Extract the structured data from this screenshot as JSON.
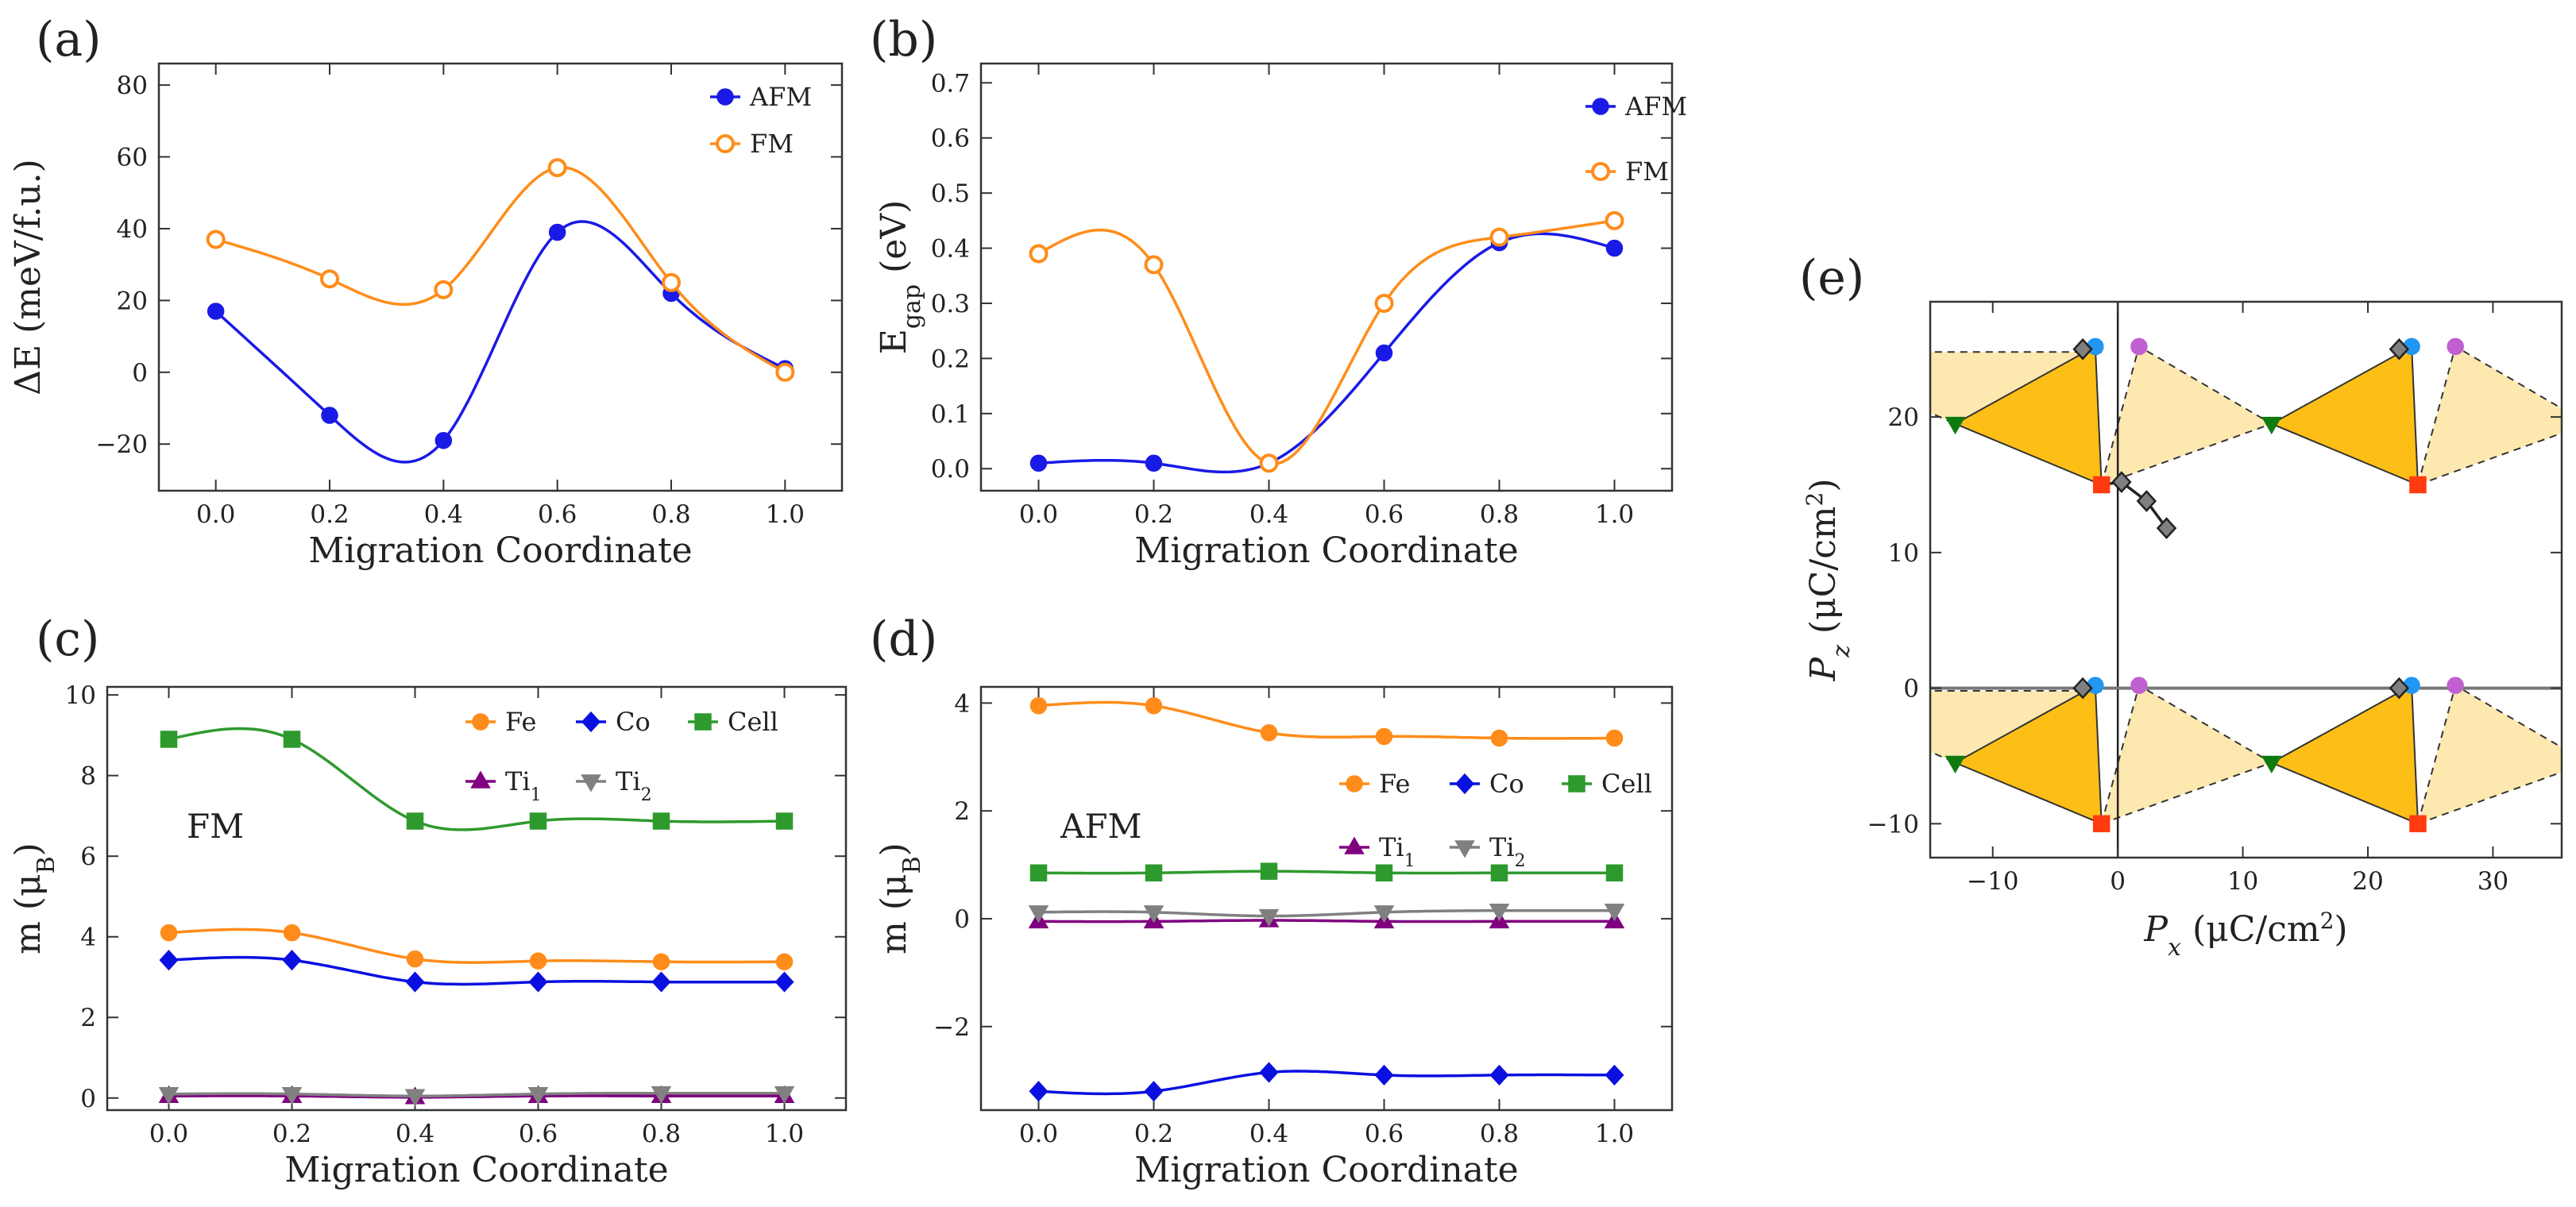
{
  "colors": {
    "afm": "#1a1ae6",
    "fm": "#ff8c1a",
    "fe": "#ff8c1a",
    "co": "#0a10e0",
    "cell": "#2e9a2e",
    "ti1": "#800080",
    "ti2": "#808080",
    "tri_dark": "#fdbf16",
    "tri_light": "#fde8b0",
    "green_marker": "#0f7a0f",
    "red_marker": "#ff3b0f",
    "blue_marker": "#2196f3",
    "purple_marker": "#c060d0",
    "gray_marker": "#808080"
  },
  "chart_data": [
    {
      "panel": "(a)",
      "type": "line",
      "xlabel": "Migration Coordinate",
      "ylabel": "ΔE (meV/f.u.)",
      "xlim": [
        -0.1,
        1.1
      ],
      "ylim": [
        -33,
        86
      ],
      "xticks": [
        0.0,
        0.2,
        0.4,
        0.6,
        0.8,
        1.0
      ],
      "xtick_labels": [
        "0.0",
        "0.2",
        "0.4",
        "0.6",
        "0.8",
        "1.0"
      ],
      "yticks": [
        -20,
        0,
        20,
        40,
        60,
        80
      ],
      "ytick_labels": [
        "−20",
        "0",
        "20",
        "40",
        "60",
        "80"
      ],
      "legend": "top-right",
      "x": [
        0.0,
        0.2,
        0.4,
        0.6,
        0.8,
        1.0
      ],
      "series": [
        {
          "name": "AFM",
          "color_key": "afm",
          "marker": "circle",
          "filled": true,
          "values": [
            17,
            -12,
            -19,
            39,
            22,
            1
          ]
        },
        {
          "name": "FM",
          "color_key": "fm",
          "marker": "circle",
          "filled": false,
          "values": [
            37,
            26,
            23,
            57,
            25,
            0
          ]
        }
      ]
    },
    {
      "panel": "(b)",
      "type": "line",
      "xlabel": "Migration Coordinate",
      "ylabel_main": "E",
      "ylabel_sub": "gap",
      "ylabel_rest": " (eV)",
      "xlim": [
        -0.1,
        1.1
      ],
      "ylim": [
        -0.04,
        0.735
      ],
      "xticks": [
        0.0,
        0.2,
        0.4,
        0.6,
        0.8,
        1.0
      ],
      "xtick_labels": [
        "0.0",
        "0.2",
        "0.4",
        "0.6",
        "0.8",
        "1.0"
      ],
      "yticks": [
        0.0,
        0.1,
        0.2,
        0.3,
        0.4,
        0.5,
        0.6,
        0.7
      ],
      "ytick_labels": [
        "0.0",
        "0.1",
        "0.2",
        "0.3",
        "0.4",
        "0.5",
        "0.6",
        "0.7"
      ],
      "legend": "top-right",
      "x": [
        0.0,
        0.2,
        0.4,
        0.6,
        0.8,
        1.0
      ],
      "series": [
        {
          "name": "AFM",
          "color_key": "afm",
          "marker": "circle",
          "filled": true,
          "values": [
            0.01,
            0.01,
            0.01,
            0.21,
            0.41,
            0.4
          ]
        },
        {
          "name": "FM",
          "color_key": "fm",
          "marker": "circle",
          "filled": false,
          "values": [
            0.39,
            0.37,
            0.01,
            0.3,
            0.42,
            0.45
          ]
        }
      ]
    },
    {
      "panel": "(c)",
      "type": "line",
      "xlabel": "Migration Coordinate",
      "ylabel_main": "m (μ",
      "ylabel_sub": "B",
      "ylabel_rest": ")",
      "annotation": "FM",
      "xlim": [
        -0.1,
        1.1
      ],
      "ylim": [
        -0.3,
        10.2
      ],
      "xticks": [
        0.0,
        0.2,
        0.4,
        0.6,
        0.8,
        1.0
      ],
      "xtick_labels": [
        "0.0",
        "0.2",
        "0.4",
        "0.6",
        "0.8",
        "1.0"
      ],
      "yticks": [
        0,
        2,
        4,
        6,
        8,
        10
      ],
      "ytick_labels": [
        "0",
        "2",
        "4",
        "6",
        "8",
        "10"
      ],
      "legend": "top-right",
      "x": [
        0.0,
        0.2,
        0.4,
        0.6,
        0.8,
        1.0
      ],
      "series": [
        {
          "name": "Fe",
          "color_key": "fe",
          "marker": "circle",
          "values": [
            4.1,
            4.1,
            3.45,
            3.4,
            3.38,
            3.38
          ]
        },
        {
          "name": "Co",
          "color_key": "co",
          "marker": "diamond",
          "values": [
            3.42,
            3.42,
            2.88,
            2.88,
            2.88,
            2.88
          ]
        },
        {
          "name": "Cell",
          "color_key": "cell",
          "marker": "square",
          "values": [
            8.9,
            8.9,
            6.87,
            6.87,
            6.87,
            6.87
          ]
        },
        {
          "name": "Ti1",
          "label_main": "Ti",
          "label_sub": "1",
          "color_key": "ti1",
          "marker": "triangle-up",
          "values": [
            0.05,
            0.05,
            0.02,
            0.05,
            0.05,
            0.05
          ]
        },
        {
          "name": "Ti2",
          "label_main": "Ti",
          "label_sub": "2",
          "color_key": "ti2",
          "marker": "triangle-down",
          "values": [
            0.1,
            0.1,
            0.05,
            0.1,
            0.12,
            0.12
          ]
        }
      ]
    },
    {
      "panel": "(d)",
      "type": "line",
      "xlabel": "Migration Coordinate",
      "ylabel_main": "m (μ",
      "ylabel_sub": "B",
      "ylabel_rest": ")",
      "annotation": "AFM",
      "xlim": [
        -0.1,
        1.1
      ],
      "ylim": [
        -3.55,
        4.3
      ],
      "xticks": [
        0.0,
        0.2,
        0.4,
        0.6,
        0.8,
        1.0
      ],
      "xtick_labels": [
        "0.0",
        "0.2",
        "0.4",
        "0.6",
        "0.8",
        "1.0"
      ],
      "yticks": [
        -2,
        0,
        2,
        4
      ],
      "ytick_labels": [
        "−2",
        "0",
        "2",
        "4"
      ],
      "legend": "top-right",
      "x": [
        0.0,
        0.2,
        0.4,
        0.6,
        0.8,
        1.0
      ],
      "series": [
        {
          "name": "Fe",
          "color_key": "fe",
          "marker": "circle",
          "values": [
            3.95,
            3.95,
            3.45,
            3.38,
            3.35,
            3.35
          ]
        },
        {
          "name": "Co",
          "color_key": "co",
          "marker": "diamond",
          "values": [
            -3.2,
            -3.2,
            -2.85,
            -2.9,
            -2.9,
            -2.9
          ]
        },
        {
          "name": "Cell",
          "color_key": "cell",
          "marker": "square",
          "values": [
            0.85,
            0.85,
            0.88,
            0.85,
            0.85,
            0.85
          ]
        },
        {
          "name": "Ti1",
          "label_main": "Ti",
          "label_sub": "1",
          "color_key": "ti1",
          "marker": "triangle-up",
          "values": [
            -0.05,
            -0.05,
            -0.03,
            -0.05,
            -0.05,
            -0.05
          ]
        },
        {
          "name": "Ti2",
          "label_main": "Ti",
          "label_sub": "2",
          "color_key": "ti2",
          "marker": "triangle-down",
          "values": [
            0.12,
            0.12,
            0.05,
            0.12,
            0.15,
            0.15
          ]
        }
      ]
    },
    {
      "panel": "(e)",
      "type": "scatter",
      "xlabel_main": "P",
      "xlabel_sub": "x",
      "xlabel_rest": " (μC/cm",
      "xlabel_sup": "2",
      "xlabel_end": ")",
      "ylabel_main": "P",
      "ylabel_sub": "z",
      "ylabel_rest": " (μC/cm",
      "ylabel_sup": "2",
      "ylabel_end": ")",
      "xlim": [
        -15,
        35.5
      ],
      "ylim": [
        -12.5,
        28.5
      ],
      "xticks": [
        -10,
        0,
        10,
        20,
        30
      ],
      "xtick_labels": [
        "−10",
        "0",
        "10",
        "20",
        "30"
      ],
      "yticks": [
        -10,
        0,
        10,
        20
      ],
      "ytick_labels": [
        "−10",
        "0",
        "10",
        "20"
      ],
      "reference_lines": {
        "x": 0,
        "y": 0
      },
      "lattice_translation": {
        "dx": 24.8,
        "dz": 25.0
      },
      "dark_triangles": [
        {
          "points": [
            [
              -13,
              19.5
            ],
            [
              -1.8,
              25.2
            ],
            [
              -1.3,
              15.0
            ]
          ]
        },
        {
          "points": [
            [
              12.3,
              19.5
            ],
            [
              23.5,
              25.2
            ],
            [
              24.0,
              15.0
            ]
          ]
        },
        {
          "points": [
            [
              -13,
              -5.5
            ],
            [
              -1.8,
              0.2
            ],
            [
              -1.3,
              -10.0
            ]
          ]
        },
        {
          "points": [
            [
              12.3,
              -5.5
            ],
            [
              23.5,
              0.2
            ],
            [
              24.0,
              -10.0
            ]
          ]
        }
      ],
      "light_triangles": [
        {
          "points": [
            [
              -1.3,
              15.0
            ],
            [
              1.7,
              25.2
            ],
            [
              12.3,
              19.5
            ]
          ]
        },
        {
          "points": [
            [
              24.0,
              15.0
            ],
            [
              27.0,
              25.2
            ],
            [
              37.6,
              19.5
            ]
          ]
        },
        {
          "points": [
            [
              -1.3,
              24.8
            ],
            [
              -13,
              19.5
            ],
            [
              -26,
              24.8
            ]
          ]
        },
        {
          "points": [
            [
              -1.3,
              -10.0
            ],
            [
              1.7,
              0.2
            ],
            [
              12.3,
              -5.5
            ]
          ]
        },
        {
          "points": [
            [
              24.0,
              -10.0
            ],
            [
              27.0,
              0.2
            ],
            [
              37.6,
              -5.5
            ]
          ]
        },
        {
          "points": [
            [
              -1.3,
              -0.2
            ],
            [
              -13,
              -5.5
            ],
            [
              -26,
              -0.2
            ]
          ]
        }
      ],
      "marker_series": [
        {
          "name": "green",
          "color_key": "green_marker",
          "marker": "triangle-down",
          "points": [
            [
              -13,
              19.5
            ],
            [
              12.3,
              19.5
            ],
            [
              -13,
              -5.5
            ],
            [
              12.3,
              -5.5
            ]
          ]
        },
        {
          "name": "red",
          "color_key": "red_marker",
          "marker": "square",
          "points": [
            [
              -1.3,
              15.0
            ],
            [
              24.0,
              15.0
            ],
            [
              -1.3,
              -10.0
            ],
            [
              24.0,
              -10.0
            ]
          ]
        },
        {
          "name": "blue",
          "color_key": "blue_marker",
          "marker": "circle",
          "points": [
            [
              -1.8,
              25.2
            ],
            [
              23.5,
              25.2
            ],
            [
              -1.8,
              0.2
            ],
            [
              23.5,
              0.2
            ]
          ]
        },
        {
          "name": "purple",
          "color_key": "purple_marker",
          "marker": "circle",
          "points": [
            [
              1.7,
              25.2
            ],
            [
              27.0,
              25.2
            ],
            [
              1.7,
              0.2
            ],
            [
              27.0,
              0.2
            ]
          ]
        },
        {
          "name": "gray",
          "color_key": "gray_marker",
          "marker": "diamond",
          "points": [
            [
              -2.8,
              25.0
            ],
            [
              22.5,
              25.0
            ],
            [
              -2.8,
              0.0
            ],
            [
              22.5,
              0.0
            ],
            [
              0.3,
              15.2
            ],
            [
              2.3,
              13.8
            ],
            [
              3.9,
              11.8
            ]
          ]
        }
      ],
      "path": [
        [
          -1.3,
          15.0
        ],
        [
          0.3,
          15.2
        ],
        [
          2.3,
          13.8
        ],
        [
          3.9,
          11.8
        ]
      ]
    }
  ]
}
